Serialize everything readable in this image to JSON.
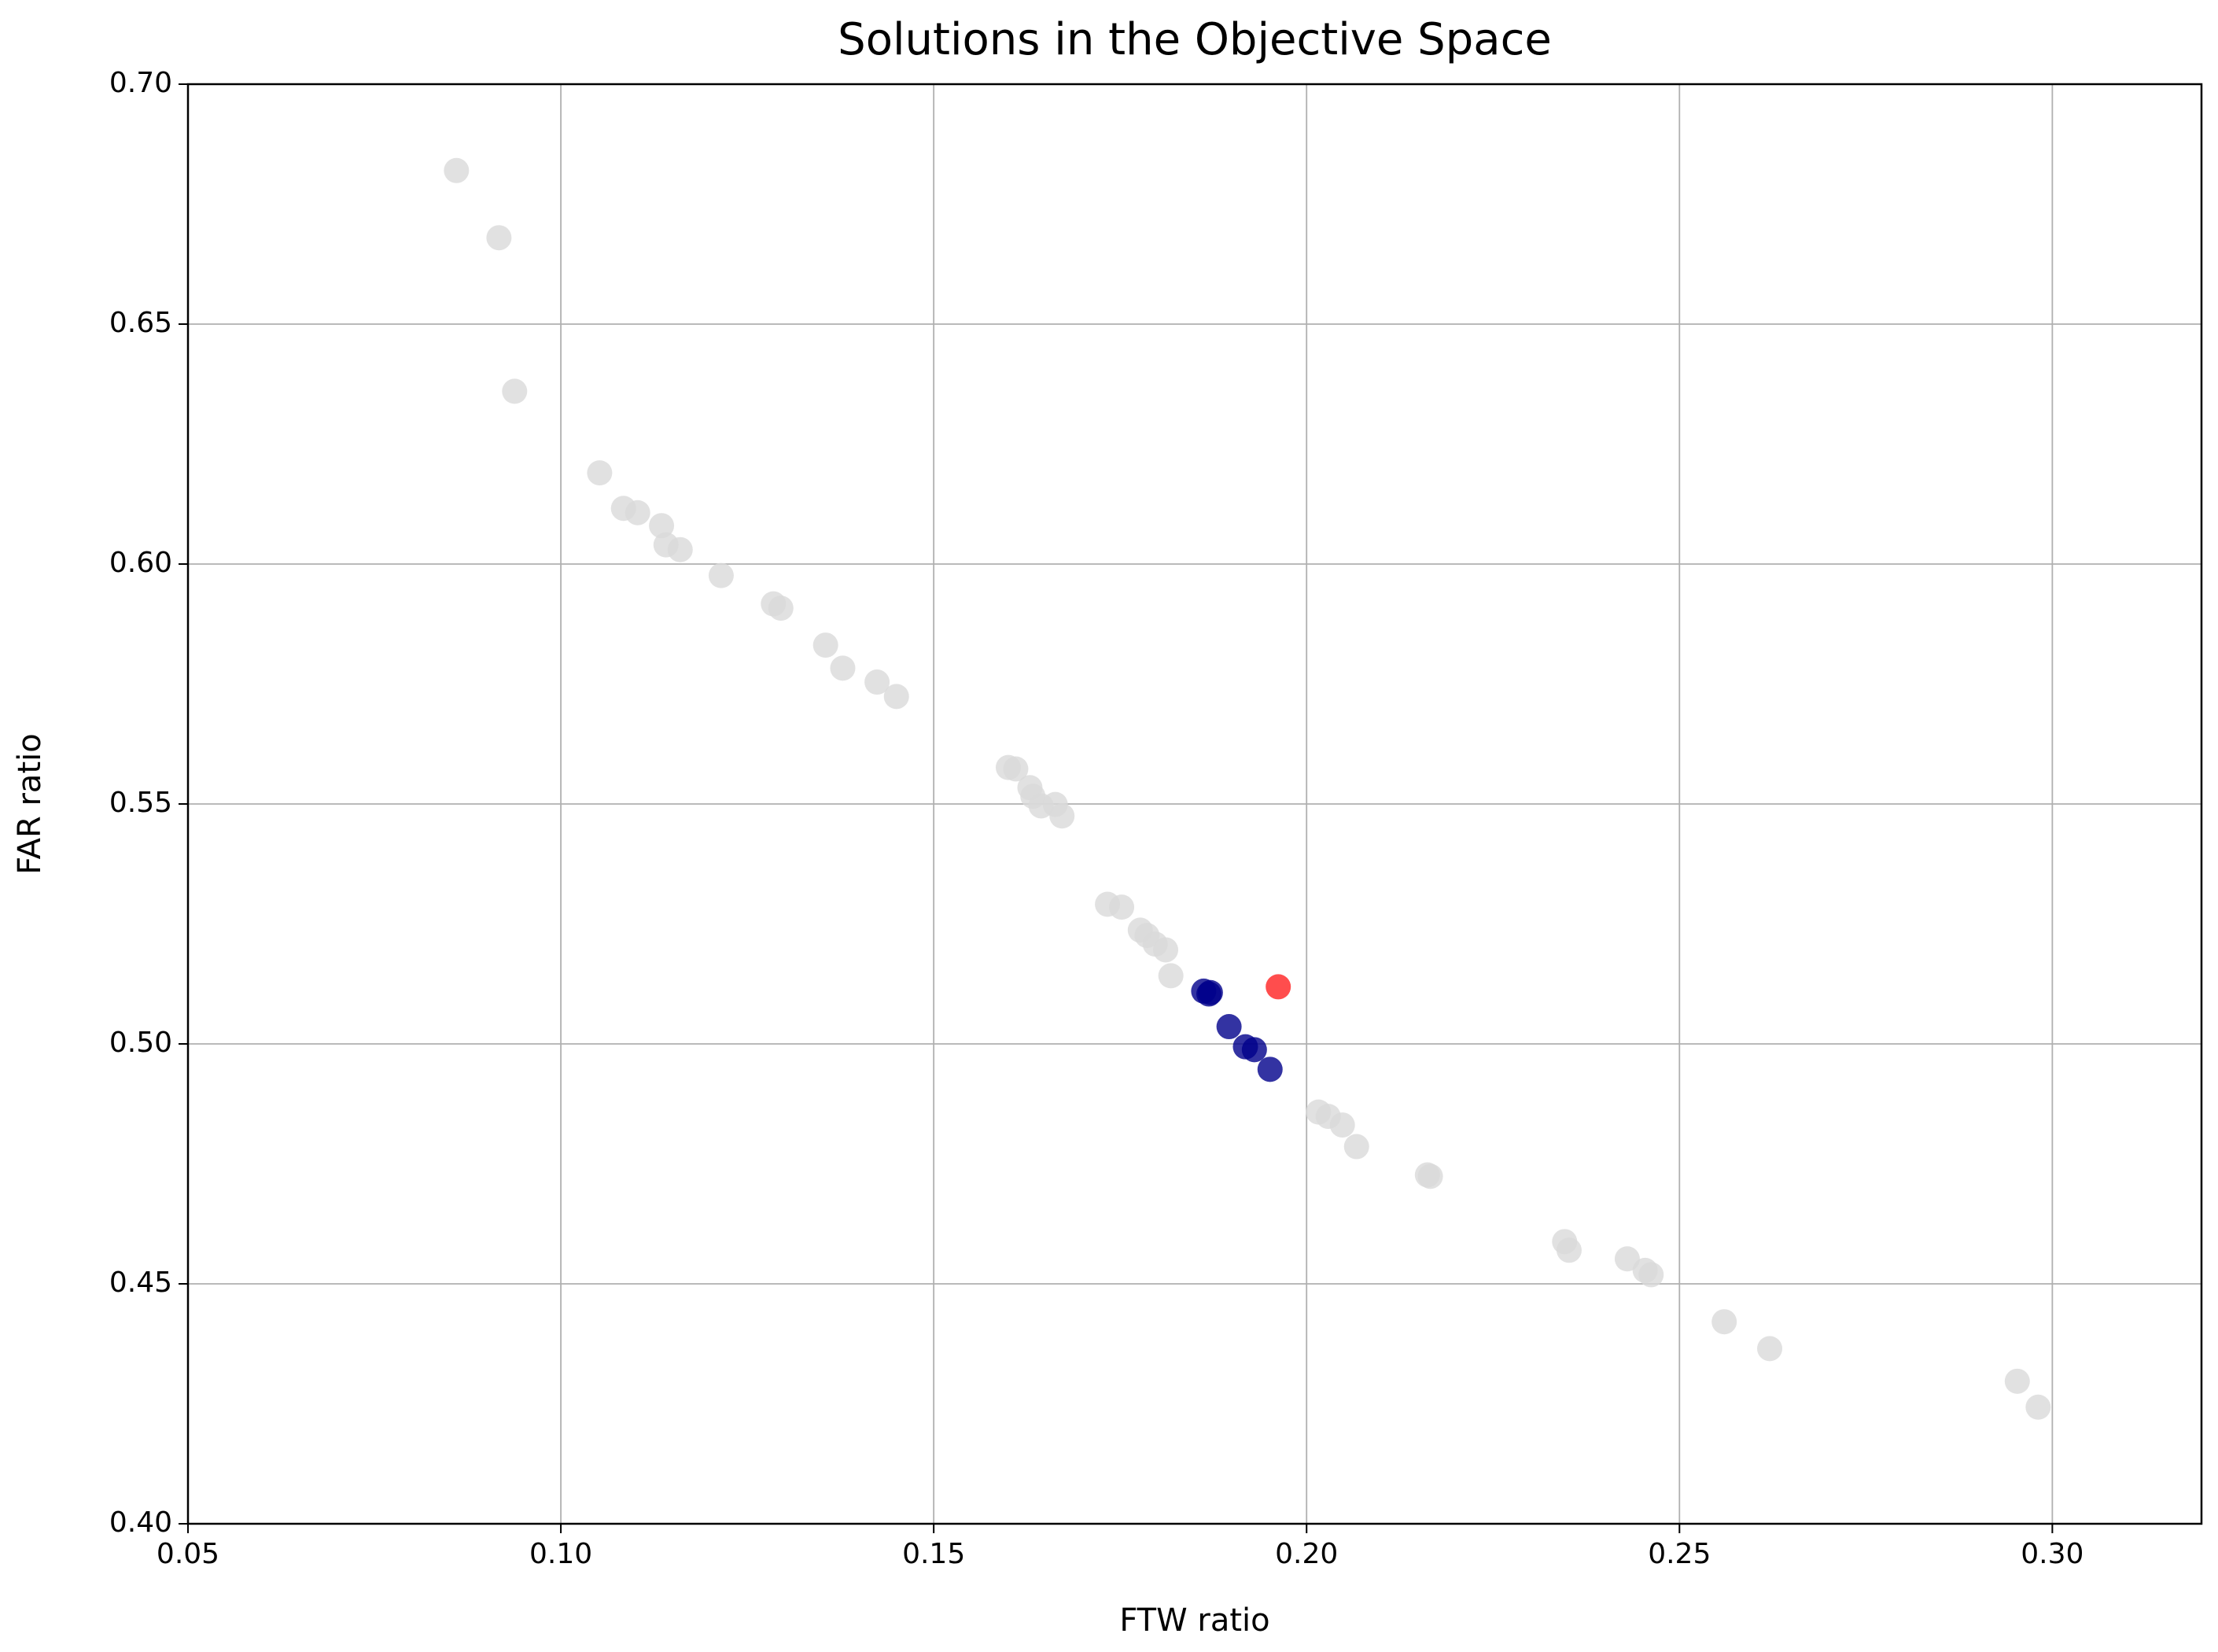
{
  "chart_data": {
    "type": "scatter",
    "title": "Solutions in the Objective Space",
    "x_label": "FTW ratio",
    "y_label": "FAR ratio",
    "xlim": [
      0.05,
      0.32
    ],
    "ylim": [
      0.4,
      0.7
    ],
    "xticks": [
      0.05,
      {
        "value": 0.1,
        "label": "0.10"
      },
      0.15,
      {
        "value": 0.2,
        "label": "0.20"
      },
      0.25,
      {
        "value": 0.3,
        "label": "0.30"
      }
    ],
    "yticks": [
      {
        "value": 0.4,
        "label": "0.40"
      },
      0.45,
      {
        "value": 0.5,
        "label": "0.50"
      },
      0.55,
      {
        "value": 0.6,
        "label": "0.60"
      },
      0.65,
      {
        "value": 0.7,
        "label": "0.70"
      }
    ],
    "grid": true,
    "series": [
      {
        "color": "#d9d9d9",
        "x": [
          0.086,
          0.0917,
          0.0938,
          0.1052,
          0.1084,
          0.1103,
          0.1135,
          0.1141,
          0.116,
          0.1215,
          0.1285,
          0.1295,
          0.1355,
          0.1378,
          0.1424,
          0.145,
          0.16,
          0.161,
          0.1629,
          0.1633,
          0.1644,
          0.1663,
          0.1672,
          0.1733,
          0.1752,
          0.1777,
          0.1786,
          0.1797,
          0.1811,
          0.1818,
          0.2016,
          0.2029,
          0.2048,
          0.2067,
          0.2162,
          0.2166,
          0.2346,
          0.2352,
          0.243,
          0.2454,
          0.2462,
          0.256,
          0.2621,
          0.2953,
          0.2981
        ],
        "y": [
          0.682,
          0.668,
          0.636,
          0.619,
          0.6116,
          0.6107,
          0.608,
          0.604,
          0.603,
          0.5976,
          0.5917,
          0.5908,
          0.5831,
          0.5783,
          0.5754,
          0.5724,
          0.5576,
          0.5573,
          0.5534,
          0.5516,
          0.5496,
          0.5499,
          0.5475,
          0.5291,
          0.5285,
          0.5237,
          0.5226,
          0.5208,
          0.5196,
          0.5142,
          0.4858,
          0.4849,
          0.4831,
          0.4786,
          0.4727,
          0.4724,
          0.4588,
          0.457,
          0.4552,
          0.4528,
          0.4519,
          0.4421,
          0.4365,
          0.4297,
          0.4243
        ]
      },
      {
        "color": "#00008b",
        "x": [
          0.1862,
          0.1871,
          0.1869,
          0.1896,
          0.1918,
          0.193,
          0.1951
        ],
        "y": [
          0.511,
          0.5107,
          0.5104,
          0.5036,
          0.4994,
          0.4988,
          0.4947
        ]
      },
      {
        "color": "#ff2020",
        "x": [
          0.1962
        ],
        "y": [
          0.5119
        ]
      }
    ]
  }
}
